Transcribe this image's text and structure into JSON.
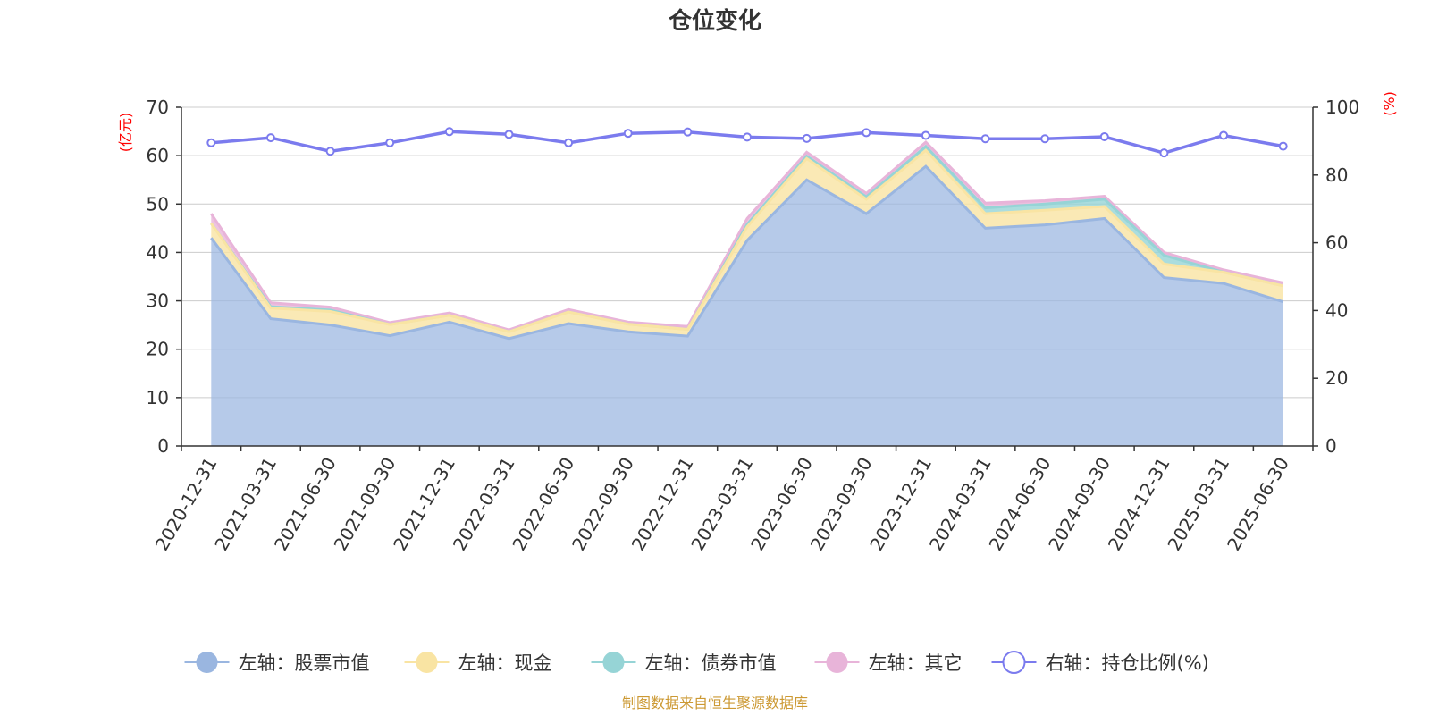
{
  "chart_data": {
    "type": "area",
    "title": "仓位变化",
    "left_unit": "(亿元)",
    "right_unit": "(%)",
    "x": [
      "2020-12-31",
      "2021-03-31",
      "2021-06-30",
      "2021-09-30",
      "2021-12-31",
      "2022-03-31",
      "2022-06-30",
      "2022-09-30",
      "2022-12-31",
      "2023-03-31",
      "2023-06-30",
      "2023-09-30",
      "2023-12-31",
      "2024-03-31",
      "2024-06-30",
      "2024-09-30",
      "2024-12-31",
      "2025-03-31",
      "2025-06-30"
    ],
    "y_left_ticks": [
      "0",
      "10",
      "20",
      "30",
      "40",
      "50",
      "60",
      "70"
    ],
    "y_right_ticks": [
      "0",
      "20",
      "40",
      "60",
      "80",
      "100"
    ],
    "ylim_left": [
      0,
      70
    ],
    "ylim_right": [
      0,
      100
    ],
    "stacked": true,
    "grid": true,
    "legend_position": "bottom",
    "series": [
      {
        "name": "左轴：股票市值",
        "axis": "left",
        "color": "#9ab6e0",
        "values": [
          43.0,
          26.3,
          25.0,
          22.8,
          25.6,
          22.2,
          25.3,
          23.6,
          22.7,
          42.5,
          55.0,
          48.0,
          57.8,
          45.0,
          45.7,
          47.0,
          34.8,
          33.6,
          29.8
        ]
      },
      {
        "name": "左轴：现金",
        "axis": "left",
        "color": "#f9e4a3",
        "values": [
          3.0,
          2.2,
          2.8,
          2.3,
          1.4,
          1.4,
          2.4,
          1.6,
          1.4,
          2.8,
          4.4,
          3.0,
          3.3,
          3.0,
          3.0,
          2.5,
          2.8,
          2.3,
          3.3
        ]
      },
      {
        "name": "左轴：债券市值",
        "axis": "left",
        "color": "#96d4d6",
        "values": [
          0.0,
          0.3,
          0.3,
          0.0,
          0.0,
          0.0,
          0.0,
          0.0,
          0.0,
          0.5,
          0.5,
          0.5,
          0.8,
          1.2,
          1.3,
          1.5,
          1.8,
          0.0,
          0.0
        ]
      },
      {
        "name": "左轴：其它",
        "axis": "left",
        "color": "#e8b4d9",
        "values": [
          2.0,
          0.8,
          0.6,
          0.4,
          0.5,
          0.4,
          0.5,
          0.4,
          0.6,
          1.2,
          0.8,
          0.7,
          0.9,
          1.0,
          0.7,
          0.6,
          0.6,
          0.5,
          0.6
        ]
      },
      {
        "name": "右轴：持仓比例(%)",
        "axis": "right",
        "color": "#7b7bee",
        "values": [
          89.5,
          91.0,
          87.0,
          89.5,
          92.8,
          92.0,
          89.5,
          92.3,
          92.7,
          91.2,
          90.8,
          92.5,
          91.7,
          90.7,
          90.7,
          91.3,
          86.5,
          91.7,
          88.5
        ]
      }
    ]
  },
  "footer": "制图数据来自恒生聚源数据库"
}
